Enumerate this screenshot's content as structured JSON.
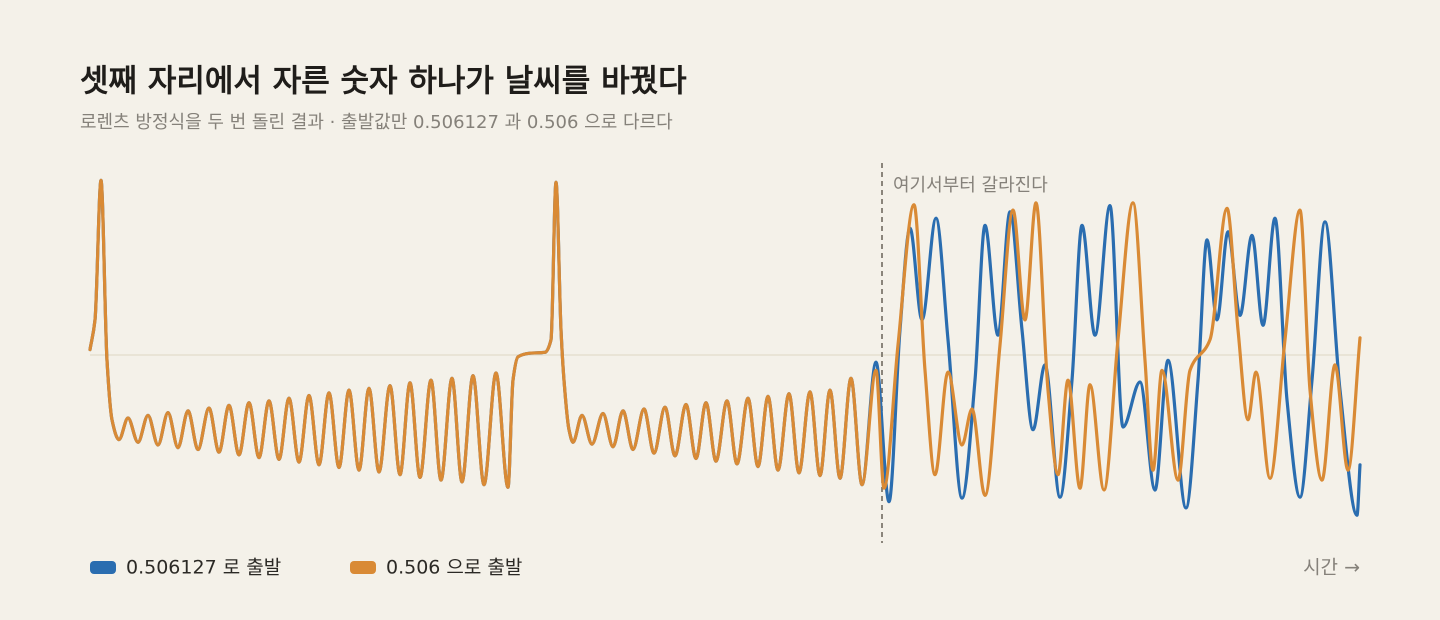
{
  "chart_data": {
    "type": "line",
    "title": "셋째 자리에서 자른 숫자 하나가 날씨를 바꿨다",
    "subtitle": "로렌츠 방정식을 두 번 돌린 결과 · 출발값만 0.506127 과 0.506 으로 다르다",
    "x_label": "시간 →",
    "xlim": [
      0,
      127
    ],
    "ylim": [
      -20,
      20
    ],
    "reference_line": 0,
    "grid": false,
    "legend": "bottom-left",
    "annotation": {
      "text": "여기서부터 갈라진다",
      "x": 79.2
    },
    "series": [
      {
        "name": "0.506127 로 출발",
        "color": "#2a6db0",
        "x": [
          0.0,
          0.5,
          1.1,
          1.7,
          2.2,
          2.9,
          3.8,
          4.8,
          5.8,
          6.8,
          7.8,
          8.8,
          9.8,
          10.8,
          11.9,
          12.9,
          13.9,
          14.9,
          15.9,
          16.9,
          17.9,
          18.9,
          19.9,
          20.9,
          21.9,
          22.9,
          23.9,
          24.9,
          25.9,
          26.9,
          27.9,
          28.9,
          30.0,
          31.0,
          32.0,
          33.0,
          34.1,
          35.1,
          36.2,
          37.2,
          38.3,
          39.4,
          40.6,
          41.8,
          42.3,
          42.8,
          44.0,
          45.5,
          46.1,
          46.6,
          47.1,
          47.4,
          47.9,
          48.3,
          49.2,
          50.2,
          51.3,
          52.3,
          53.3,
          54.3,
          55.4,
          56.4,
          57.5,
          58.5,
          59.6,
          60.6,
          61.6,
          62.6,
          63.7,
          64.7,
          65.8,
          66.8,
          67.8,
          68.8,
          69.9,
          70.9,
          72.0,
          73.0,
          74.0,
          75.0,
          76.1,
          77.2,
          78.6,
          79.9,
          81.0,
          82.0,
          83.2,
          84.6,
          85.8,
          87.2,
          88.5,
          89.5,
          90.8,
          92.0,
          93.2,
          94.3,
          95.5,
          97.0,
          98.2,
          99.2,
          100.5,
          102.0,
          103.3,
          105.0,
          106.5,
          107.8,
          109.6,
          110.8,
          111.7,
          112.7,
          113.8,
          115.0,
          116.2,
          117.3,
          118.5,
          119.7,
          121.0,
          122.2,
          123.5,
          125.0,
          126.7,
          127.0
        ],
        "values": [
          0.6,
          3.9,
          19.4,
          -0.6,
          -7.2,
          -9.4,
          -7.0,
          -9.7,
          -6.7,
          -10.0,
          -6.4,
          -10.3,
          -6.2,
          -10.5,
          -5.9,
          -10.8,
          -5.6,
          -11.1,
          -5.3,
          -11.4,
          -5.1,
          -11.6,
          -4.8,
          -11.9,
          -4.5,
          -12.2,
          -4.2,
          -12.5,
          -3.9,
          -12.8,
          -3.7,
          -13.0,
          -3.4,
          -13.3,
          -3.1,
          -13.6,
          -2.8,
          -13.9,
          -2.6,
          -14.1,
          -2.3,
          -14.4,
          -2.0,
          -14.7,
          -2.8,
          -0.2,
          0.2,
          0.3,
          1.7,
          19.2,
          2.8,
          -2.8,
          -8.3,
          -9.7,
          -6.7,
          -9.9,
          -6.5,
          -10.2,
          -6.2,
          -10.5,
          -6.0,
          -10.9,
          -5.8,
          -11.2,
          -5.5,
          -11.5,
          -5.3,
          -11.8,
          -5.1,
          -12.1,
          -4.8,
          -12.4,
          -4.6,
          -12.8,
          -4.3,
          -13.1,
          -4.1,
          -13.4,
          -3.9,
          -13.7,
          -2.6,
          -14.4,
          -0.8,
          -16.3,
          2.8,
          14.1,
          3.9,
          15.2,
          1.7,
          -15.9,
          -2.8,
          14.4,
          2.2,
          15.9,
          2.8,
          -8.3,
          -1.1,
          -15.8,
          -2.8,
          14.4,
          2.2,
          16.6,
          -8.0,
          -3.0,
          -15.0,
          -0.6,
          -17.0,
          -2.8,
          12.8,
          3.9,
          13.7,
          4.4,
          13.3,
          3.3,
          15.2,
          -5.0,
          -15.8,
          -2.8,
          14.8,
          -3.9,
          -17.8,
          -12.2
        ]
      },
      {
        "name": "0.506 으로 출발",
        "color": "#d98a35",
        "x": [
          0.0,
          0.5,
          1.1,
          1.7,
          2.2,
          2.9,
          3.8,
          4.8,
          5.8,
          6.8,
          7.8,
          8.8,
          9.8,
          10.8,
          11.9,
          12.9,
          13.9,
          14.9,
          15.9,
          16.9,
          17.9,
          18.9,
          19.9,
          20.9,
          21.9,
          22.9,
          23.9,
          24.9,
          25.9,
          26.9,
          27.9,
          28.9,
          30.0,
          31.0,
          32.0,
          33.0,
          34.1,
          35.1,
          36.2,
          37.2,
          38.3,
          39.4,
          40.6,
          41.8,
          42.3,
          42.8,
          44.0,
          45.5,
          46.1,
          46.6,
          47.1,
          47.4,
          47.9,
          48.3,
          49.2,
          50.2,
          51.3,
          52.3,
          53.3,
          54.3,
          55.4,
          56.4,
          57.5,
          58.5,
          59.6,
          60.6,
          61.6,
          62.6,
          63.7,
          64.7,
          65.8,
          66.8,
          67.8,
          68.8,
          69.9,
          70.9,
          72.0,
          73.0,
          74.0,
          75.0,
          76.1,
          77.2,
          78.6,
          79.4,
          80.8,
          82.4,
          83.5,
          84.5,
          85.8,
          87.2,
          88.2,
          89.5,
          91.0,
          92.3,
          93.5,
          94.6,
          95.8,
          96.8,
          97.8,
          99.0,
          100.0,
          101.4,
          102.8,
          104.3,
          105.5,
          106.3,
          107.2,
          108.8,
          110.0,
          112.0,
          113.7,
          114.8,
          115.8,
          116.6,
          118.0,
          119.5,
          121.0,
          122.0,
          123.2,
          124.5,
          125.8,
          127.0
        ],
        "values": [
          0.6,
          3.9,
          19.4,
          -0.6,
          -7.2,
          -9.4,
          -7.0,
          -9.7,
          -6.7,
          -10.0,
          -6.4,
          -10.3,
          -6.2,
          -10.5,
          -5.9,
          -10.8,
          -5.6,
          -11.1,
          -5.3,
          -11.4,
          -5.1,
          -11.6,
          -4.8,
          -11.9,
          -4.5,
          -12.2,
          -4.2,
          -12.5,
          -3.9,
          -12.8,
          -3.7,
          -13.0,
          -3.4,
          -13.3,
          -3.1,
          -13.6,
          -2.8,
          -13.9,
          -2.6,
          -14.1,
          -2.3,
          -14.4,
          -2.0,
          -14.7,
          -2.8,
          -0.2,
          0.2,
          0.3,
          1.7,
          19.2,
          2.8,
          -2.8,
          -8.3,
          -9.7,
          -6.7,
          -9.9,
          -6.5,
          -10.2,
          -6.2,
          -10.5,
          -6.0,
          -10.9,
          -5.8,
          -11.2,
          -5.5,
          -11.5,
          -5.3,
          -11.8,
          -5.1,
          -12.1,
          -4.8,
          -12.4,
          -4.6,
          -12.8,
          -4.3,
          -13.1,
          -4.1,
          -13.4,
          -3.9,
          -13.7,
          -2.6,
          -14.4,
          -1.7,
          -14.8,
          1.1,
          16.7,
          -1.7,
          -13.3,
          -1.9,
          -10.0,
          -6.0,
          -15.6,
          1.1,
          16.1,
          3.9,
          16.9,
          -3.9,
          -13.3,
          -2.8,
          -14.8,
          -3.3,
          -15.0,
          1.7,
          16.9,
          -0.6,
          -12.8,
          -1.7,
          -13.9,
          -1.7,
          1.7,
          16.3,
          2.8,
          -7.2,
          -1.9,
          -13.7,
          1.7,
          16.1,
          -3.9,
          -13.9,
          -1.1,
          -12.8,
          1.9
        ]
      }
    ]
  }
}
